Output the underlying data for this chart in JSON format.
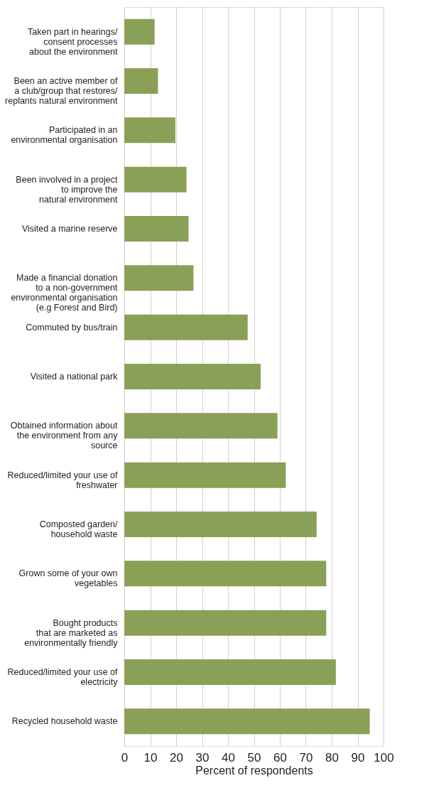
{
  "chart_data": {
    "type": "bar",
    "orientation": "horizontal",
    "xlabel": "Percent of respondents",
    "categories": [
      "Taken part in hearings/\nconsent processes\nabout the environment",
      "Been an active member of\na club/group that restores/\nreplants natural environment",
      "Participated in an\nenvironmental organisation",
      "Been involved in a project\nto improve the\nnatural environment",
      "Visited a marine reserve",
      "Made a financial donation\nto a non-government\nenvironmental organisation\n(e.g Forest and Bird)",
      "Commuted by bus/train",
      "Visited a national park",
      "Obtained information about\nthe environment from any\nsource",
      "Reduced/limited your use of\nfreshwater",
      "Composted garden/\nhousehold waste",
      "Grown some of your own\nvegetables",
      "Bought products\nthat are marketed as\nenvironmentally friendly",
      "Reduced/limited your use of\nelectricity",
      "Recycled household waste"
    ],
    "values": [
      11.7,
      13.0,
      19.7,
      24.0,
      24.8,
      26.7,
      47.6,
      52.6,
      59.1,
      62.3,
      74.2,
      77.9,
      77.9,
      81.6,
      94.7
    ],
    "color": "#8ba057",
    "xlim": [
      0,
      100
    ],
    "xticks": [
      0,
      10,
      20,
      30,
      40,
      50,
      60,
      70,
      80,
      90,
      100
    ],
    "grid": "x"
  }
}
